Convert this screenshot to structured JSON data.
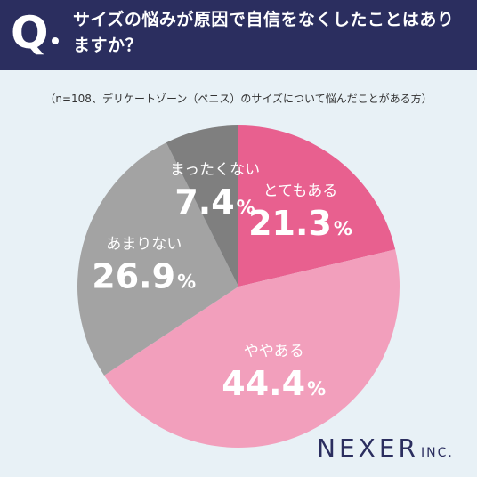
{
  "header": {
    "q_mark": "Q",
    "title": "サイズの悩みが原因で自信をなくしたことはありますか？"
  },
  "chart_data": {
    "type": "pie",
    "title": "サイズの悩みが原因で自信をなくしたことはありますか？",
    "subtitle": "（n=108、デリケートゾーン（ペニス）のサイズについて悩んだことがある方）",
    "start_angle_deg": 0,
    "direction": "clockwise",
    "slices": [
      {
        "label": "とてもある",
        "value": 21.3,
        "display": "21.3",
        "unit": "%",
        "color": "#e8608f"
      },
      {
        "label": "ややある",
        "value": 44.4,
        "display": "44.4",
        "unit": "%",
        "color": "#f29fbc"
      },
      {
        "label": "あまりない",
        "value": 26.9,
        "display": "26.9",
        "unit": "%",
        "color": "#a3a3a3"
      },
      {
        "label": "まったくない",
        "value": 7.4,
        "display": "7.4",
        "unit": "%",
        "color": "#7f7f7f"
      }
    ]
  },
  "brand": {
    "logo_text": "NEXER",
    "logo_suffix": "INC."
  }
}
